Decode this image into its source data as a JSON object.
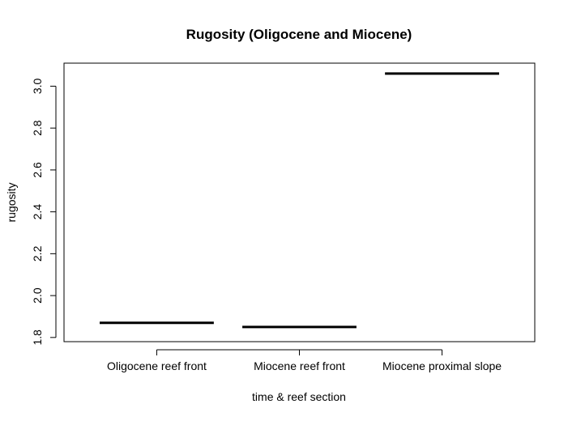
{
  "chart_data": {
    "type": "box",
    "title": "Rugosity (Oligocene and Miocene)",
    "xlabel": "time & reef section",
    "ylabel": "rugosity",
    "categories": [
      "Oligocene reef front",
      "Miocene reef front",
      "Miocene proximal slope"
    ],
    "values": [
      1.87,
      1.85,
      3.06
    ],
    "ylim": [
      1.78,
      3.11
    ],
    "yticks": [
      1.8,
      2.0,
      2.2,
      2.4,
      2.6,
      2.8,
      3.0
    ],
    "ytick_labels": [
      "1.8",
      "2.0",
      "2.2",
      "2.4",
      "2.6",
      "2.8",
      "3.0"
    ],
    "grid": false,
    "legend": "none",
    "line_color": "#000000"
  }
}
